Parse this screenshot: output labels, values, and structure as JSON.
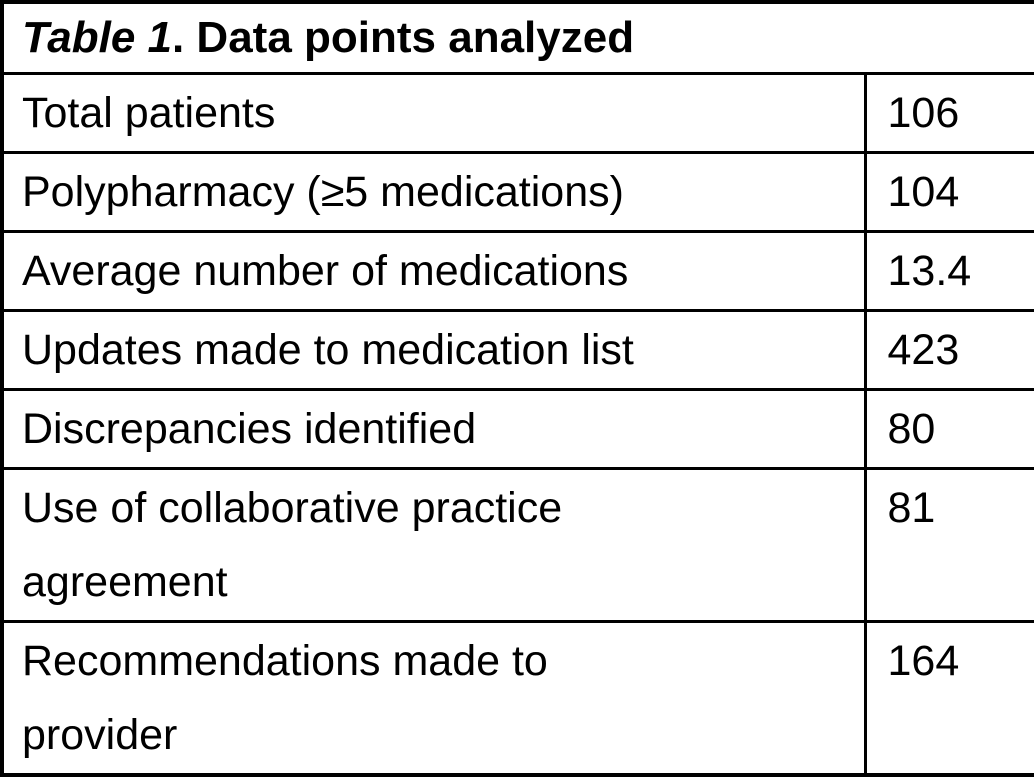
{
  "colors": {
    "border": "#000000",
    "text": "#000000",
    "background": "#ffffff"
  },
  "table": {
    "title": {
      "prefix": "Table 1",
      "rest": ". Data points analyzed"
    },
    "rows": [
      {
        "label": "Total patients",
        "value": "106"
      },
      {
        "label": "Polypharmacy (≥5 medications)",
        "value": "104"
      },
      {
        "label": "Average number of medications",
        "value": "13.4"
      },
      {
        "label": "Updates made to medication list",
        "value": "423"
      },
      {
        "label": "Discrepancies identified",
        "value": "80"
      },
      {
        "label": "Use of collaborative practice\nagreement",
        "value": "81"
      },
      {
        "label": "Recommendations made to\nprovider",
        "value": "164"
      }
    ]
  }
}
